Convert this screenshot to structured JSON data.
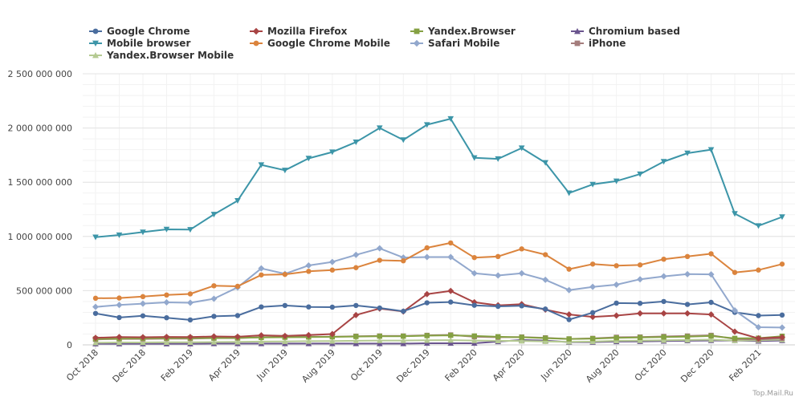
{
  "chart_data": {
    "type": "line",
    "title": "",
    "xlabel": "",
    "ylabel": "",
    "ylim": [
      0,
      2500000000
    ],
    "y_ticks": [
      0,
      500000000,
      1000000000,
      1500000000,
      2000000000,
      2500000000
    ],
    "y_tick_labels": [
      "0",
      "500 000 000",
      "1 000 000 000",
      "1 500 000 000",
      "2 000 000 000",
      "2 500 000 000"
    ],
    "grid": true,
    "legend_position": "top-left",
    "x": [
      "Oct 2018",
      "Nov 2018",
      "Dec 2018",
      "Jan 2019",
      "Feb 2019",
      "Mar 2019",
      "Apr 2019",
      "May 2019",
      "Jun 2019",
      "Jul 2019",
      "Aug 2019",
      "Sep 2019",
      "Oct 2019",
      "Nov 2019",
      "Dec 2019",
      "Jan 2020",
      "Feb 2020",
      "Mar 2020",
      "Apr 2020",
      "May 2020",
      "Jun 2020",
      "Jul 2020",
      "Aug 2020",
      "Sep 2020",
      "Oct 2020",
      "Nov 2020",
      "Dec 2020",
      "Jan 2021",
      "Feb 2021",
      "Mar 2021"
    ],
    "x_tick_labels": [
      "Oct 2018",
      "Dec 2018",
      "Feb 2019",
      "Apr 2019",
      "Jun 2019",
      "Aug 2019",
      "Oct 2019",
      "Dec 2019",
      "Feb 2020",
      "Apr 2020",
      "Jun 2020",
      "Aug 2020",
      "Oct 2020",
      "Dec 2020",
      "Feb 2021"
    ],
    "series": [
      {
        "name": "Google Chrome",
        "color": "#4a6d9e",
        "marker": "circle",
        "values": [
          290000000,
          252000000,
          268000000,
          250000000,
          230000000,
          263000000,
          270000000,
          350000000,
          363000000,
          350000000,
          348000000,
          363000000,
          340000000,
          310000000,
          388000000,
          395000000,
          365000000,
          355000000,
          360000000,
          330000000,
          233000000,
          297000000,
          385000000,
          383000000,
          400000000,
          373000000,
          392000000,
          300000000,
          270000000,
          275000000
        ]
      },
      {
        "name": "Mozilla Firefox",
        "color": "#a84444",
        "marker": "diamond",
        "values": [
          65000000,
          72000000,
          70000000,
          73000000,
          72000000,
          78000000,
          75000000,
          88000000,
          82000000,
          90000000,
          100000000,
          275000000,
          335000000,
          308000000,
          468000000,
          497000000,
          393000000,
          365000000,
          375000000,
          325000000,
          280000000,
          258000000,
          270000000,
          290000000,
          290000000,
          290000000,
          280000000,
          122000000,
          60000000,
          70000000
        ]
      },
      {
        "name": "Yandex.Browser",
        "color": "#85a143",
        "marker": "square",
        "values": [
          55000000,
          58000000,
          60000000,
          62000000,
          63000000,
          63000000,
          65000000,
          68000000,
          70000000,
          72000000,
          74000000,
          77000000,
          80000000,
          80000000,
          85000000,
          88000000,
          82000000,
          75000000,
          70000000,
          62000000,
          55000000,
          58000000,
          65000000,
          68000000,
          72000000,
          76000000,
          82000000,
          60000000,
          62000000,
          80000000
        ]
      },
      {
        "name": "Chromium based",
        "color": "#6a558e",
        "marker": "triangle",
        "values": [
          10000000,
          10000000,
          10000000,
          10000000,
          10000000,
          12000000,
          12000000,
          12000000,
          12000000,
          12000000,
          12000000,
          12000000,
          12000000,
          12000000,
          15000000,
          15000000,
          15000000,
          30000000,
          45000000,
          40000000,
          25000000,
          25000000,
          30000000,
          32000000,
          35000000,
          38000000,
          40000000,
          40000000,
          35000000,
          40000000
        ]
      },
      {
        "name": "Mobile browser",
        "color": "#3c95a8",
        "marker": "triangle-down",
        "values": [
          993000000,
          1013000000,
          1040000000,
          1065000000,
          1063000000,
          1203000000,
          1330000000,
          1660000000,
          1610000000,
          1720000000,
          1778000000,
          1870000000,
          2000000000,
          1890000000,
          2030000000,
          2085000000,
          1725000000,
          1715000000,
          1815000000,
          1680000000,
          1400000000,
          1480000000,
          1510000000,
          1575000000,
          1690000000,
          1768000000,
          1800000000,
          1210000000,
          1098000000,
          1180000000
        ]
      },
      {
        "name": "Google Chrome Mobile",
        "color": "#db843d",
        "marker": "circle",
        "values": [
          430000000,
          432000000,
          445000000,
          460000000,
          470000000,
          545000000,
          540000000,
          645000000,
          650000000,
          678000000,
          690000000,
          712000000,
          780000000,
          775000000,
          895000000,
          940000000,
          805000000,
          815000000,
          885000000,
          832000000,
          698000000,
          745000000,
          730000000,
          737000000,
          790000000,
          815000000,
          840000000,
          668000000,
          690000000,
          745000000
        ]
      },
      {
        "name": "Safari Mobile",
        "color": "#92a8cd",
        "marker": "diamond",
        "values": [
          350000000,
          368000000,
          380000000,
          392000000,
          388000000,
          425000000,
          530000000,
          705000000,
          655000000,
          732000000,
          765000000,
          830000000,
          890000000,
          805000000,
          810000000,
          810000000,
          660000000,
          640000000,
          660000000,
          600000000,
          505000000,
          535000000,
          555000000,
          605000000,
          632000000,
          652000000,
          650000000,
          318000000,
          163000000,
          160000000
        ]
      },
      {
        "name": "iPhone",
        "color": "#a47d7c",
        "marker": "square",
        "values": [
          50000000,
          55000000,
          55000000,
          58000000,
          58000000,
          62000000,
          62000000,
          70000000,
          72000000,
          75000000,
          75000000,
          80000000,
          82000000,
          82000000,
          88000000,
          92000000,
          75000000,
          70000000,
          72000000,
          65000000,
          55000000,
          60000000,
          70000000,
          72000000,
          78000000,
          82000000,
          88000000,
          55000000,
          50000000,
          60000000
        ]
      },
      {
        "name": "Yandex.Browser Mobile",
        "color": "#b5ca92",
        "marker": "triangle",
        "values": [
          20000000,
          22000000,
          22000000,
          24000000,
          24000000,
          26000000,
          27000000,
          30000000,
          32000000,
          34000000,
          35000000,
          38000000,
          40000000,
          40000000,
          42000000,
          44000000,
          40000000,
          38000000,
          36000000,
          32000000,
          28000000,
          30000000,
          38000000,
          40000000,
          42000000,
          45000000,
          48000000,
          40000000,
          42000000,
          48000000
        ]
      }
    ]
  },
  "credit": "Top.Mail.Ru"
}
